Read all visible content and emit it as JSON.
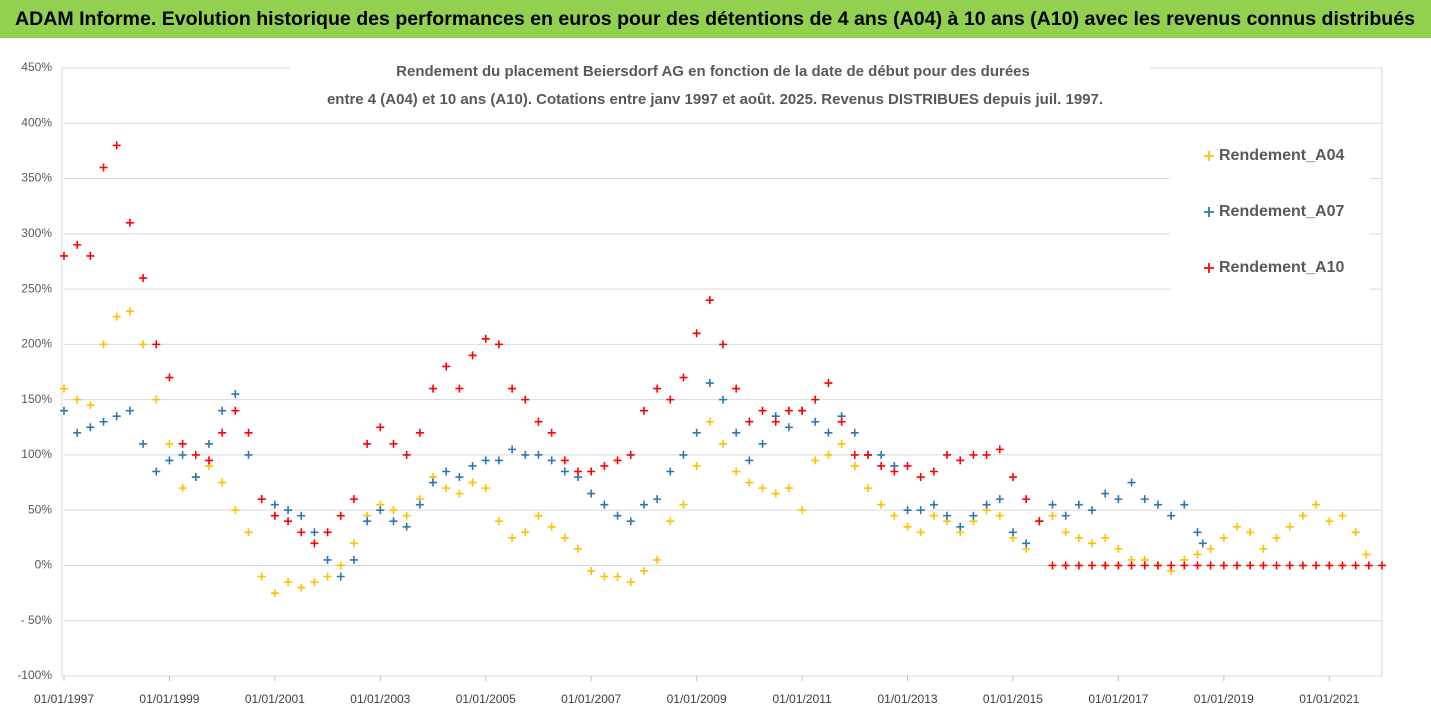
{
  "header": "ADAM Informe. Evolution historique des performances en euros pour des détentions de 4 ans (A04) à 10 ans (A10) avec les revenus connus distribués",
  "chart_data": {
    "type": "scatter",
    "title_lines": [
      "Rendement du placement Beiersdorf AG en fonction de la date de début pour des durées",
      "entre 4 (A04) et 10 ans (A10). Cotations entre janv 1997 et août. 2025. Revenus DISTRIBUES depuis juil. 1997."
    ],
    "xlim": [
      1997,
      2022
    ],
    "xticks": [
      {
        "value": 1997,
        "label": "01/01/1997"
      },
      {
        "value": 1999,
        "label": "01/01/1999"
      },
      {
        "value": 2001,
        "label": "01/01/2001"
      },
      {
        "value": 2003,
        "label": "01/01/2003"
      },
      {
        "value": 2005,
        "label": "01/01/2005"
      },
      {
        "value": 2007,
        "label": "01/01/2007"
      },
      {
        "value": 2009,
        "label": "01/01/2009"
      },
      {
        "value": 2011,
        "label": "01/01/2011"
      },
      {
        "value": 2013,
        "label": "01/01/2013"
      },
      {
        "value": 2015,
        "label": "01/01/2015"
      },
      {
        "value": 2017,
        "label": "01/01/2017"
      },
      {
        "value": 2019,
        "label": "01/01/2019"
      },
      {
        "value": 2021,
        "label": "01/01/2021"
      }
    ],
    "ylim": [
      -100,
      450
    ],
    "yticks": [
      {
        "value": -100,
        "label": "-100%"
      },
      {
        "value": -50,
        "label": "- 50%"
      },
      {
        "value": 0,
        "label": "0%"
      },
      {
        "value": 50,
        "label": "50%"
      },
      {
        "value": 100,
        "label": "100%"
      },
      {
        "value": 150,
        "label": "150%"
      },
      {
        "value": 200,
        "label": "200%"
      },
      {
        "value": 250,
        "label": "250%"
      },
      {
        "value": 300,
        "label": "300%"
      },
      {
        "value": 350,
        "label": "350%"
      },
      {
        "value": 400,
        "label": "400%"
      },
      {
        "value": 450,
        "label": "450%"
      }
    ],
    "grid": true,
    "legend": "upper right",
    "series": [
      {
        "name": "Rendement_A04",
        "color": "#ffc000",
        "x": [
          1997,
          1997.25,
          1997.5,
          1997.75,
          1998,
          1998.25,
          1998.5,
          1998.75,
          1999,
          1999.25,
          1999.5,
          1999.75,
          2000,
          2000.25,
          2000.5,
          2000.75,
          2001,
          2001.25,
          2001.5,
          2001.75,
          2002,
          2002.25,
          2002.5,
          2002.75,
          2003,
          2003.25,
          2003.5,
          2003.75,
          2004,
          2004.25,
          2004.5,
          2004.75,
          2005,
          2005.25,
          2005.5,
          2005.75,
          2006,
          2006.25,
          2006.5,
          2006.75,
          2007,
          2007.25,
          2007.5,
          2007.75,
          2008,
          2008.25,
          2008.5,
          2008.75,
          2009,
          2009.25,
          2009.5,
          2009.75,
          2010,
          2010.25,
          2010.5,
          2010.75,
          2011,
          2011.25,
          2011.5,
          2011.75,
          2012,
          2012.25,
          2012.5,
          2012.75,
          2013,
          2013.25,
          2013.5,
          2013.75,
          2014,
          2014.25,
          2014.5,
          2014.75,
          2015,
          2015.25,
          2015.5,
          2015.75,
          2016,
          2016.25,
          2016.5,
          2016.75,
          2017,
          2017.25,
          2017.5,
          2017.75,
          2018,
          2018.25,
          2018.5,
          2018.75,
          2019,
          2019.25,
          2019.5,
          2019.75,
          2020,
          2020.25,
          2020.5,
          2020.75,
          2021,
          2021.25,
          2021.5,
          2021.7
        ],
        "values": [
          160,
          150,
          145,
          200,
          225,
          230,
          200,
          150,
          110,
          70,
          80,
          90,
          75,
          50,
          30,
          -10,
          -25,
          -15,
          -20,
          -15,
          -10,
          0,
          20,
          45,
          55,
          50,
          45,
          60,
          80,
          70,
          65,
          75,
          70,
          40,
          25,
          30,
          45,
          35,
          25,
          15,
          -5,
          -10,
          -10,
          -15,
          -5,
          5,
          40,
          55,
          90,
          130,
          110,
          85,
          75,
          70,
          65,
          70,
          50,
          95,
          100,
          110,
          90,
          70,
          55,
          45,
          35,
          30,
          45,
          40,
          30,
          40,
          50,
          45,
          25,
          15,
          40,
          45,
          30,
          25,
          20,
          25,
          15,
          5,
          5,
          0,
          -5,
          5,
          10,
          15,
          25,
          35,
          30,
          15,
          25,
          35,
          45,
          55,
          40,
          45,
          30,
          10
        ]
      },
      {
        "name": "Rendement_A07",
        "color": "#2e75b6",
        "x": [
          1997,
          1997.25,
          1997.5,
          1997.75,
          1998,
          1998.25,
          1998.5,
          1998.75,
          1999,
          1999.25,
          1999.5,
          1999.75,
          2000,
          2000.25,
          2000.5,
          2000.75,
          2001,
          2001.25,
          2001.5,
          2001.75,
          2002,
          2002.25,
          2002.5,
          2002.75,
          2003,
          2003.25,
          2003.5,
          2003.75,
          2004,
          2004.25,
          2004.5,
          2004.75,
          2005,
          2005.25,
          2005.5,
          2005.75,
          2006,
          2006.25,
          2006.5,
          2006.75,
          2007,
          2007.25,
          2007.5,
          2007.75,
          2008,
          2008.25,
          2008.5,
          2008.75,
          2009,
          2009.25,
          2009.5,
          2009.75,
          2010,
          2010.25,
          2010.5,
          2010.75,
          2011,
          2011.25,
          2011.5,
          2011.75,
          2012,
          2012.25,
          2012.5,
          2012.75,
          2013,
          2013.25,
          2013.5,
          2013.75,
          2014,
          2014.25,
          2014.5,
          2014.75,
          2015,
          2015.25,
          2015.5,
          2015.75,
          2016,
          2016.25,
          2016.5,
          2016.75,
          2017,
          2017.25,
          2017.5,
          2017.75,
          2018,
          2018.25,
          2018.5,
          2018.6
        ],
        "values": [
          140,
          120,
          125,
          130,
          135,
          140,
          110,
          85,
          95,
          100,
          80,
          110,
          140,
          155,
          100,
          60,
          55,
          50,
          45,
          30,
          5,
          -10,
          5,
          40,
          50,
          40,
          35,
          55,
          75,
          85,
          80,
          90,
          95,
          95,
          105,
          100,
          100,
          95,
          85,
          80,
          65,
          55,
          45,
          40,
          55,
          60,
          85,
          100,
          120,
          165,
          150,
          120,
          95,
          110,
          135,
          125,
          140,
          130,
          120,
          135,
          120,
          100,
          100,
          90,
          50,
          50,
          55,
          45,
          35,
          45,
          55,
          60,
          30,
          20,
          40,
          55,
          45,
          55,
          50,
          65,
          60,
          75,
          60,
          55,
          45,
          55,
          30,
          20
        ]
      },
      {
        "name": "Rendement_A10",
        "color": "#ff0000",
        "x": [
          1997,
          1997.25,
          1997.5,
          1997.75,
          1998,
          1998.25,
          1998.5,
          1998.75,
          1999,
          1999.25,
          1999.5,
          1999.75,
          2000,
          2000.25,
          2000.5,
          2000.75,
          2001,
          2001.25,
          2001.5,
          2001.75,
          2002,
          2002.25,
          2002.5,
          2002.75,
          2003,
          2003.25,
          2003.5,
          2003.75,
          2004,
          2004.25,
          2004.5,
          2004.75,
          2005,
          2005.25,
          2005.5,
          2005.75,
          2006,
          2006.25,
          2006.5,
          2006.75,
          2007,
          2007.25,
          2007.5,
          2007.75,
          2008,
          2008.25,
          2008.5,
          2008.75,
          2009,
          2009.25,
          2009.5,
          2009.75,
          2010,
          2010.25,
          2010.5,
          2010.75,
          2011,
          2011.25,
          2011.5,
          2011.75,
          2012,
          2012.25,
          2012.5,
          2012.75,
          2013,
          2013.25,
          2013.5,
          2013.75,
          2014,
          2014.25,
          2014.5,
          2014.75,
          2015,
          2015.25,
          2015.5,
          2015.75,
          2016,
          2016.25,
          2016.5,
          2016.75,
          2017,
          2017.25,
          2017.5,
          2017.75,
          2018,
          2018.25,
          2018.5,
          2018.75,
          2019,
          2019.25,
          2019.5,
          2019.75,
          2020,
          2020.25,
          2020.5,
          2020.75,
          2021,
          2021.25,
          2021.5,
          2021.75,
          2022
        ],
        "values": [
          280,
          290,
          280,
          360,
          380,
          310,
          260,
          200,
          170,
          110,
          100,
          95,
          120,
          140,
          120,
          60,
          45,
          40,
          30,
          20,
          30,
          45,
          60,
          110,
          125,
          110,
          100,
          120,
          160,
          180,
          160,
          190,
          205,
          200,
          160,
          150,
          130,
          120,
          95,
          85,
          85,
          90,
          95,
          100,
          140,
          160,
          150,
          170,
          210,
          240,
          200,
          160,
          130,
          140,
          130,
          140,
          140,
          150,
          165,
          130,
          100,
          100,
          90,
          85,
          90,
          80,
          85,
          100,
          95,
          100,
          100,
          105,
          80,
          60,
          40,
          0,
          0,
          0,
          0,
          0,
          0,
          0,
          0,
          0,
          0,
          0,
          0,
          0,
          0,
          0,
          0,
          0,
          0,
          0,
          0,
          0,
          0,
          0,
          0,
          0,
          0
        ]
      }
    ]
  }
}
